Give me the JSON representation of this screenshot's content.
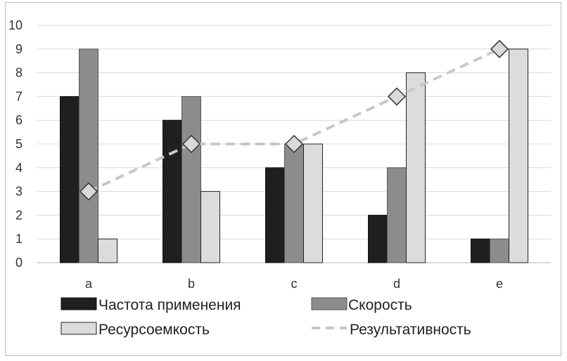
{
  "chart_data": {
    "type": "bar",
    "title": "",
    "xlabel": "",
    "ylabel": "",
    "categories": [
      "a",
      "b",
      "c",
      "d",
      "e"
    ],
    "ylim": [
      0,
      10
    ],
    "yticks": [
      0,
      1,
      2,
      3,
      4,
      5,
      6,
      7,
      8,
      9,
      10
    ],
    "grid": true,
    "legend_position": "bottom",
    "series": [
      {
        "name": "Частота применения",
        "kind": "bar",
        "color": "#1f1f1f",
        "values": [
          7,
          6,
          4,
          2,
          1
        ]
      },
      {
        "name": "Скорость",
        "kind": "bar",
        "color": "#8c8c8c",
        "values": [
          9,
          7,
          5,
          4,
          1
        ]
      },
      {
        "name": "Ресурсоемкость",
        "kind": "bar",
        "color": "#dcdcdc",
        "values": [
          1,
          3,
          5,
          8,
          9
        ]
      },
      {
        "name": "Результативность",
        "kind": "line",
        "style": "dashed",
        "marker": "diamond",
        "color": "#c8c8c8",
        "values": [
          3,
          5,
          5,
          7,
          9
        ]
      }
    ]
  }
}
